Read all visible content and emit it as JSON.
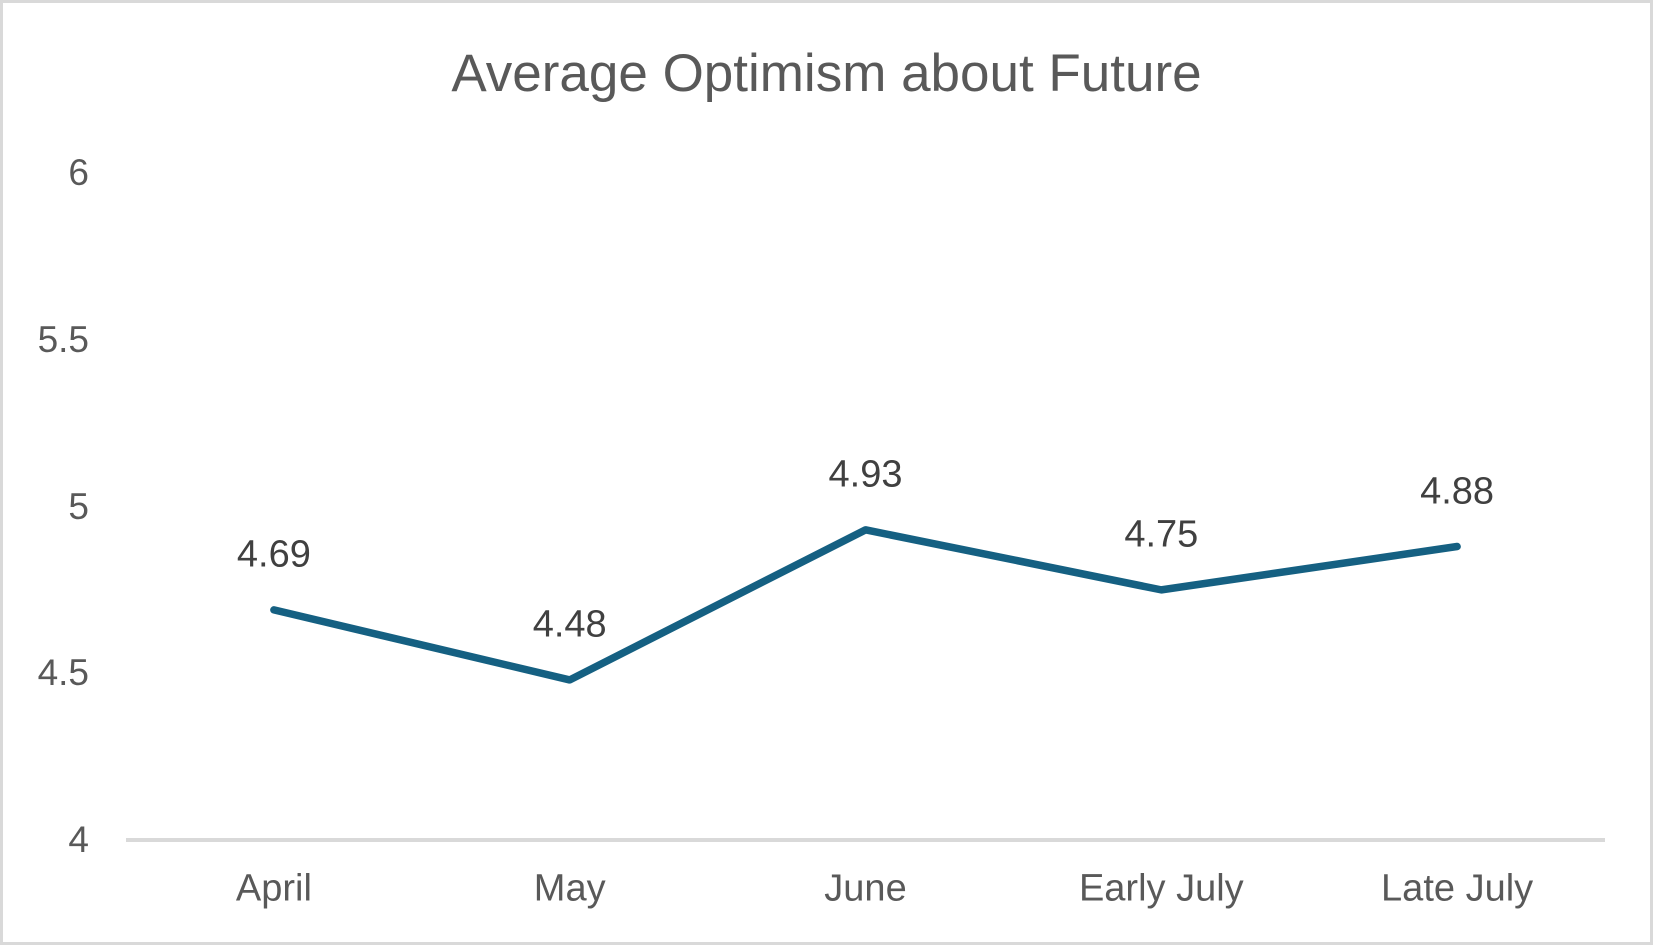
{
  "window": {
    "background_color": "#ffffff",
    "border_color": "#d9d9d9"
  },
  "chart_data": {
    "type": "line",
    "title": "Average Optimism about Future",
    "categories": [
      "April",
      "May",
      "June",
      "Early July",
      "Late July"
    ],
    "values": [
      4.69,
      4.48,
      4.93,
      4.75,
      4.88
    ],
    "data_labels": [
      "4.69",
      "4.48",
      "4.93",
      "4.75",
      "4.88"
    ],
    "y_ticks": [
      4,
      4.5,
      5,
      5.5,
      6
    ],
    "y_tick_labels": [
      "4",
      "4.5",
      "5",
      "5.5",
      "6"
    ],
    "ylim": [
      4,
      6
    ],
    "xlabel": "",
    "ylabel": "",
    "grid": "off",
    "legend": "none",
    "series_name": "Average Optimism",
    "line_color": "#156082",
    "title_color": "#595959",
    "axis_label_color": "#595959",
    "data_label_color": "#404040",
    "axis_line_color": "#d9d9d9"
  }
}
